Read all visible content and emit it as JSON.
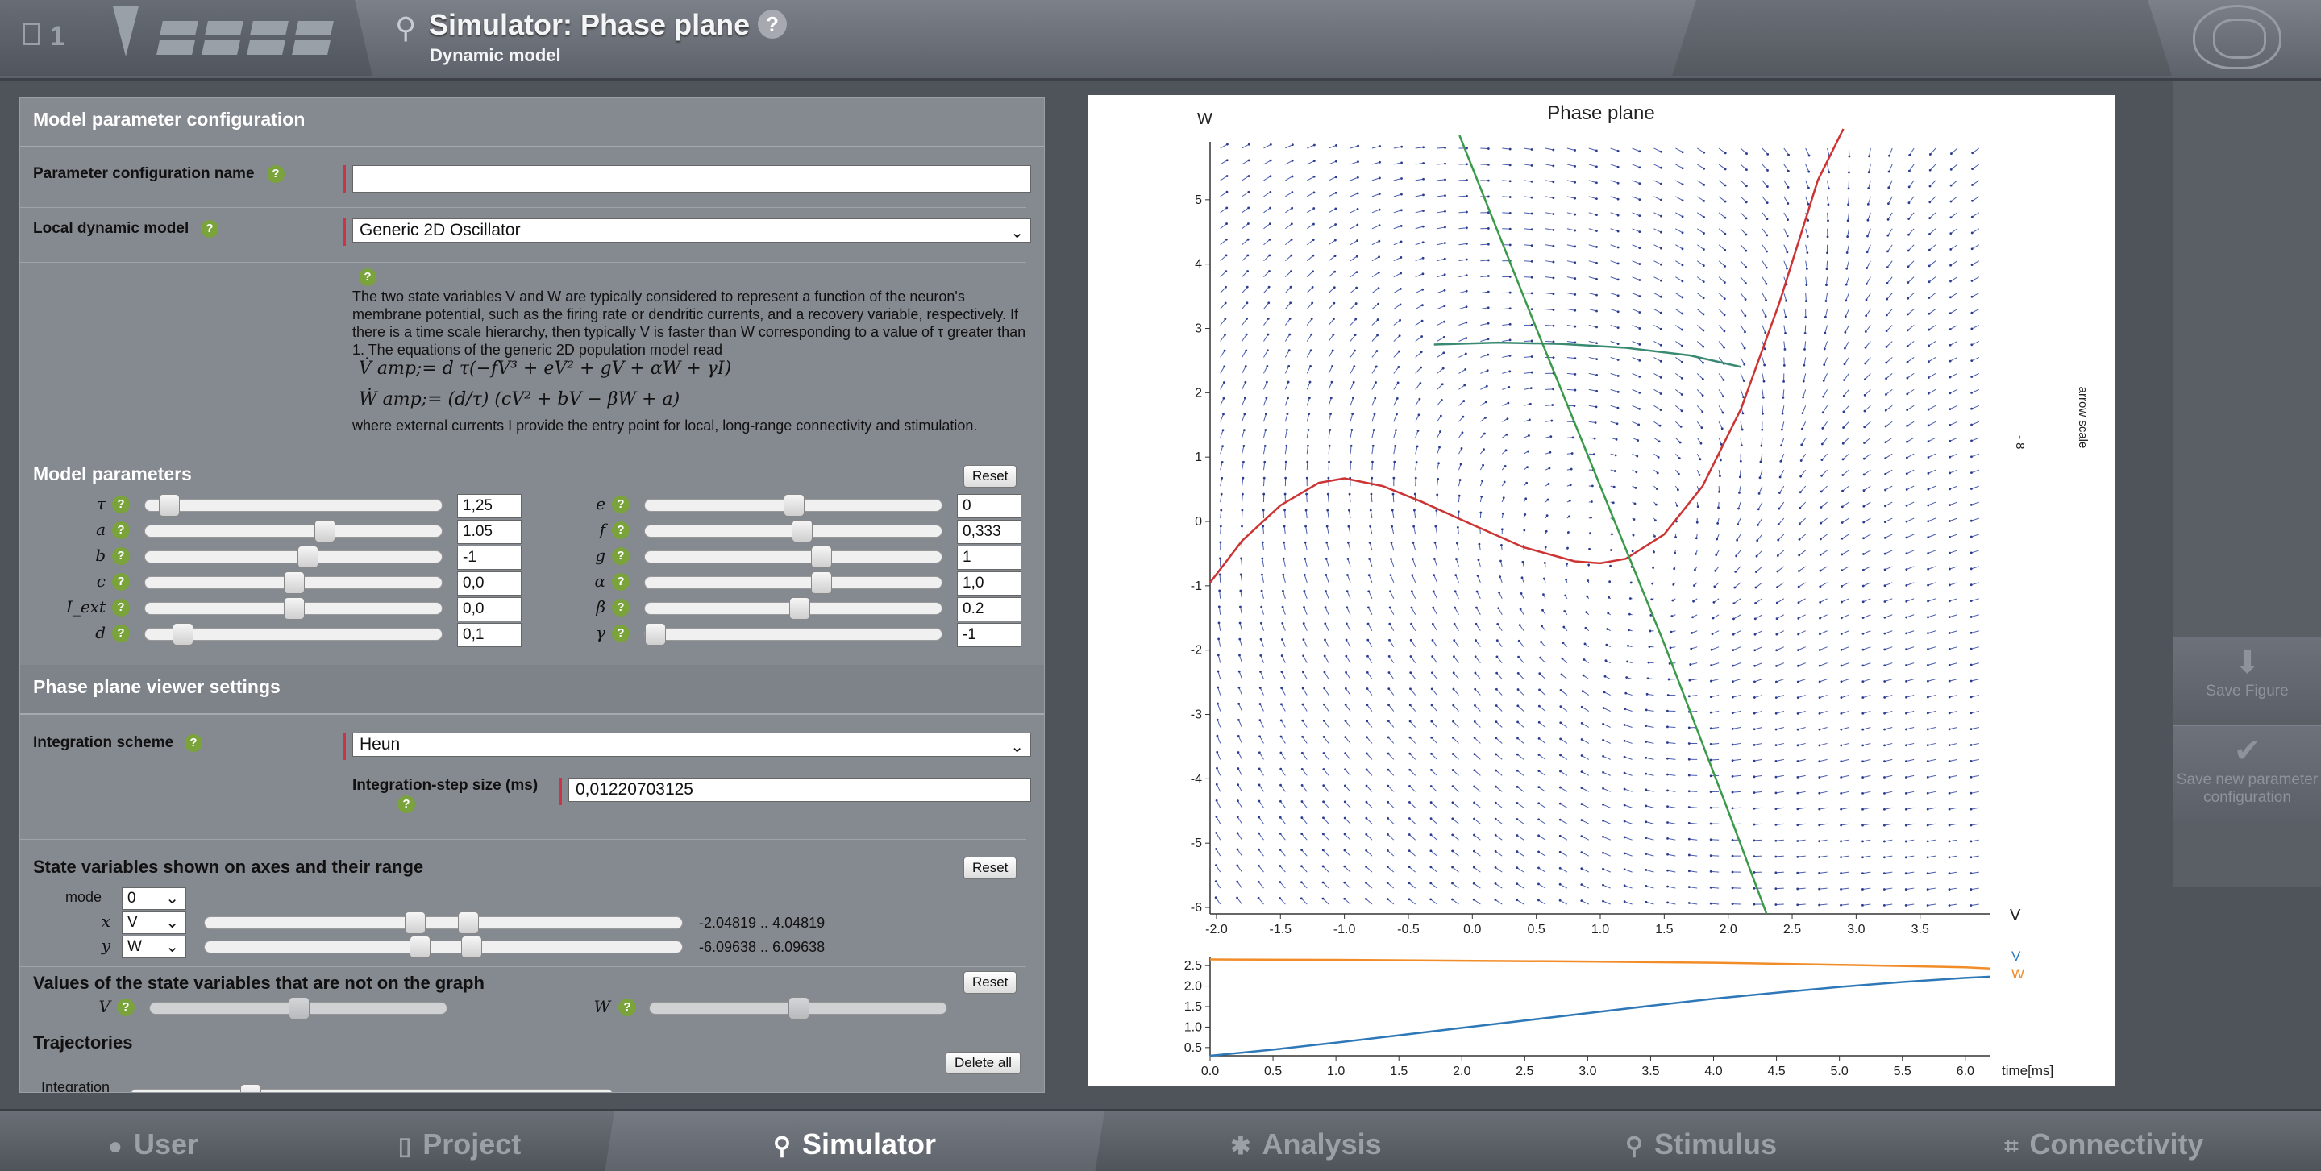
{
  "header": {
    "project_number": "1",
    "title": "Simulator: Phase plane",
    "subtitle": "Dynamic model"
  },
  "model_config": {
    "section_title": "Model parameter configuration",
    "param_config_name_label": "Parameter configuration name",
    "param_config_name_value": "",
    "local_model_label": "Local dynamic model",
    "local_model_value": "Generic 2D Oscillator",
    "description_1": "The two state variables V and W are typically considered to represent a function of the neuron's membrane potential, such as the firing rate or dendritic currents, and a recovery variable, respectively. If there is a time scale hierarchy, then typically V is faster than W corresponding to a value of τ greater than 1. The equations of the generic 2D population model read",
    "equation_1": "V̇ amp;= d τ(−fV³ + eV² + gV + αW + γI)",
    "equation_2": "Ẇ amp;= (d/τ) (cV² + bV − βW + a)",
    "description_2": "where external currents I provide the entry point for local, long-range connectivity and stimulation."
  },
  "model_parameters": {
    "title": "Model parameters",
    "reset_label": "Reset",
    "left": [
      {
        "name": "τ",
        "value": "1,25",
        "pos": 0.05
      },
      {
        "name": "a",
        "value": "1.05",
        "pos": 0.61
      },
      {
        "name": "b",
        "value": "-1",
        "pos": 0.55
      },
      {
        "name": "c",
        "value": "0,0",
        "pos": 0.5
      },
      {
        "name": "I_ext",
        "value": "0,0",
        "pos": 0.5
      },
      {
        "name": "d",
        "value": "0,1",
        "pos": 0.1
      }
    ],
    "right": [
      {
        "name": "e",
        "value": "0",
        "pos": 0.5
      },
      {
        "name": "f",
        "value": "0,333",
        "pos": 0.53
      },
      {
        "name": "g",
        "value": "1",
        "pos": 0.6
      },
      {
        "name": "α",
        "value": "1,0",
        "pos": 0.6
      },
      {
        "name": "β",
        "value": "0.2",
        "pos": 0.52
      },
      {
        "name": "γ",
        "value": "-1",
        "pos": 0.0
      }
    ]
  },
  "viewer_settings": {
    "title": "Phase plane viewer settings",
    "integration_scheme_label": "Integration scheme",
    "integration_scheme_value": "Heun",
    "step_size_label": "Integration-step size (ms)",
    "step_size_value": "0,01220703125"
  },
  "state_axes": {
    "title": "State variables shown on axes and their range",
    "reset_label": "Reset",
    "mode_label": "mode",
    "mode_value": "0",
    "x_label": "x",
    "x_value": "V",
    "x_range": "-2.04819 .. 4.04819",
    "y_label": "y",
    "y_value": "W",
    "y_range": "-6.09638 .. 6.09638"
  },
  "state_values": {
    "title": "Values of the state variables that are not on the graph",
    "reset_label": "Reset",
    "v_label": "V",
    "w_label": "W"
  },
  "trajectories": {
    "title": "Trajectories",
    "delete_label": "Delete all",
    "integration_label": "Integration"
  },
  "chart_data": [
    {
      "type": "line",
      "title": "Phase plane",
      "xlabel": "V",
      "ylabel": "W",
      "xlim": [
        -2.05,
        4.05
      ],
      "ylim": [
        -6.1,
        5.9
      ],
      "x_ticks": [
        "-2.0",
        "-1.5",
        "-1.0",
        "-0.5",
        "0.0",
        "0.5",
        "1.0",
        "1.5",
        "2.0",
        "2.5",
        "3.0",
        "3.5"
      ],
      "y_ticks": [
        "5",
        "4",
        "3",
        "2",
        "1",
        "0",
        "-1",
        "-2",
        "-3",
        "-4",
        "-5",
        "-6"
      ],
      "side_label": "arrow scale",
      "side_mark": "- 8",
      "series": [
        {
          "color": "#cc3333",
          "x": [
            -2.05,
            -1.8,
            -1.5,
            -1.2,
            -1.0,
            -0.7,
            -0.4,
            0.0,
            0.4,
            0.8,
            1.0,
            1.2,
            1.5,
            1.8,
            2.1,
            2.4,
            2.7,
            2.9
          ],
          "y": [
            -0.95,
            -0.3,
            0.25,
            0.6,
            0.67,
            0.55,
            0.31,
            -0.05,
            -0.4,
            -0.62,
            -0.65,
            -0.58,
            -0.2,
            0.55,
            1.75,
            3.4,
            5.3,
            6.1
          ]
        },
        {
          "color": "#3a9a4a",
          "x": [
            -0.1,
            0.5,
            1.0,
            1.5,
            2.0,
            2.3
          ],
          "y": [
            6.0,
            3.0,
            0.55,
            -1.9,
            -4.5,
            -6.1
          ]
        },
        {
          "color": "#3a8a72",
          "x": [
            -0.3,
            0.2,
            0.7,
            1.2,
            1.7,
            2.1
          ],
          "y": [
            2.75,
            2.78,
            2.76,
            2.7,
            2.58,
            2.4
          ]
        }
      ]
    },
    {
      "type": "line",
      "xlabel": "time[ms]",
      "xlim": [
        0,
        6.2
      ],
      "ylim": [
        0.3,
        2.7
      ],
      "x_ticks": [
        "0.0",
        "0.5",
        "1.0",
        "1.5",
        "2.0",
        "2.5",
        "3.0",
        "3.5",
        "4.0",
        "4.5",
        "5.0",
        "5.5",
        "6.0"
      ],
      "y_ticks": [
        "2.5",
        "2.0",
        "1.5",
        "1.0",
        "0.5"
      ],
      "series": [
        {
          "name": "V",
          "color": "#2e78b7",
          "x": [
            0,
            0.5,
            1,
            1.5,
            2,
            2.5,
            3,
            3.5,
            4,
            4.5,
            5,
            5.5,
            6,
            6.2
          ],
          "y": [
            0.3,
            0.45,
            0.62,
            0.8,
            0.98,
            1.16,
            1.34,
            1.52,
            1.69,
            1.84,
            1.98,
            2.1,
            2.2,
            2.23
          ]
        },
        {
          "name": "W",
          "color": "#f28c28",
          "x": [
            0,
            1,
            2,
            3,
            4,
            5,
            6,
            6.2
          ],
          "y": [
            2.65,
            2.64,
            2.62,
            2.6,
            2.57,
            2.52,
            2.46,
            2.43
          ]
        }
      ]
    }
  ],
  "right_sidebar": {
    "save_figure": "Save Figure",
    "save_config": "Save new parameter configuration"
  },
  "nav": {
    "user": "User",
    "project": "Project",
    "simulator": "Simulator",
    "analysis": "Analysis",
    "stimulus": "Stimulus",
    "connectivity": "Connectivity"
  }
}
